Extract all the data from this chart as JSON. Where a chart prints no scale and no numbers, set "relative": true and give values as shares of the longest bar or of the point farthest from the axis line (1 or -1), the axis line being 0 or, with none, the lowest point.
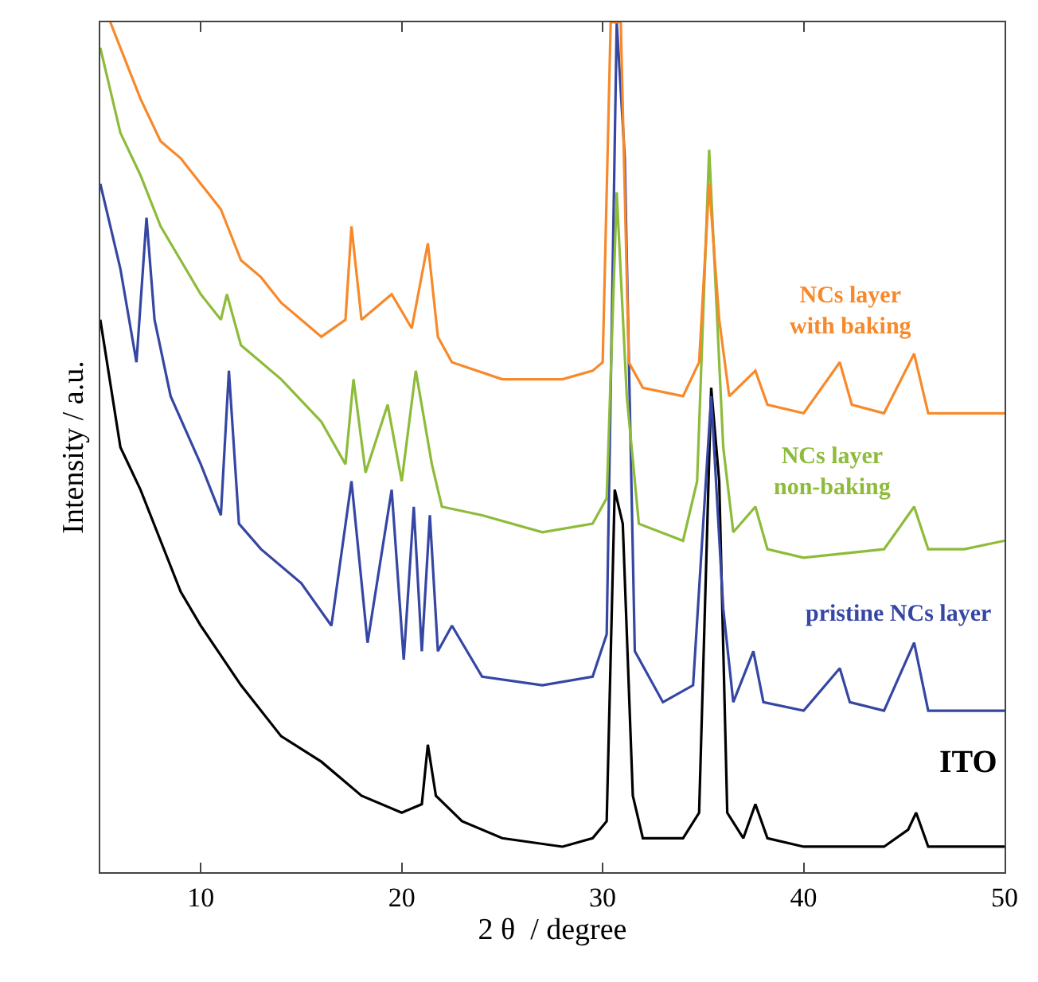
{
  "chart_data": {
    "type": "line",
    "relative": true,
    "xlabel": "2 θ  / degree",
    "ylabel": "Intensity / a.u.",
    "xlim": [
      5,
      50
    ],
    "xticks": [
      10,
      20,
      30,
      40,
      50
    ],
    "legend": false,
    "marker": "none",
    "line_style": "solid",
    "series": [
      {
        "name": "ITO",
        "color": "#000000",
        "x": [
          5,
          6,
          7,
          8,
          9,
          10,
          12,
          14,
          16,
          18,
          20,
          21,
          21.3,
          21.7,
          23,
          25,
          28,
          29.5,
          30.2,
          30.6,
          31.0,
          31.5,
          32,
          34,
          34.8,
          35.4,
          35.8,
          36.2,
          37,
          37.6,
          38.2,
          40,
          42,
          44,
          45.2,
          45.6,
          46.2,
          48,
          50
        ],
        "values": [
          0.65,
          0.5,
          0.45,
          0.39,
          0.33,
          0.29,
          0.22,
          0.16,
          0.13,
          0.09,
          0.07,
          0.08,
          0.15,
          0.09,
          0.06,
          0.04,
          0.03,
          0.04,
          0.06,
          0.45,
          0.41,
          0.09,
          0.04,
          0.04,
          0.07,
          0.57,
          0.46,
          0.07,
          0.04,
          0.08,
          0.04,
          0.03,
          0.03,
          0.03,
          0.05,
          0.07,
          0.03,
          0.03,
          0.03
        ]
      },
      {
        "name": "pristine NCs layer",
        "color": "#3546a3",
        "x": [
          5,
          6,
          6.8,
          7.3,
          7.7,
          8.5,
          10,
          11,
          11.4,
          11.9,
          13,
          15,
          16.5,
          17.5,
          18.3,
          19.5,
          20.1,
          20.6,
          21,
          21.4,
          21.8,
          22.5,
          24,
          27,
          29.5,
          30.2,
          30.7,
          31.1,
          31.6,
          33,
          34.5,
          35.4,
          36,
          36.5,
          37.5,
          38,
          40,
          41.8,
          42.3,
          44,
          45.5,
          46.2,
          48,
          50
        ],
        "values": [
          0.81,
          0.71,
          0.6,
          0.77,
          0.65,
          0.56,
          0.48,
          0.42,
          0.59,
          0.41,
          0.38,
          0.34,
          0.29,
          0.46,
          0.27,
          0.45,
          0.25,
          0.43,
          0.26,
          0.42,
          0.26,
          0.29,
          0.23,
          0.22,
          0.23,
          0.28,
          1.0,
          0.84,
          0.26,
          0.2,
          0.22,
          0.56,
          0.31,
          0.2,
          0.26,
          0.2,
          0.19,
          0.24,
          0.2,
          0.19,
          0.27,
          0.19,
          0.19,
          0.19
        ]
      },
      {
        "name": "NCs layer\nnon-baking",
        "color": "#8dbb3a",
        "x": [
          5,
          6,
          7,
          8,
          9,
          10,
          11,
          11.3,
          12,
          14,
          16,
          17.2,
          17.6,
          18.2,
          19.3,
          20,
          20.7,
          21.5,
          22,
          24,
          27,
          29.5,
          30.2,
          30.7,
          31.2,
          31.8,
          34,
          34.7,
          35.3,
          36,
          36.5,
          37.6,
          38.2,
          40,
          44,
          45.5,
          46.2,
          48,
          50
        ],
        "values": [
          0.97,
          0.87,
          0.82,
          0.76,
          0.72,
          0.68,
          0.65,
          0.68,
          0.62,
          0.58,
          0.53,
          0.48,
          0.58,
          0.47,
          0.55,
          0.46,
          0.59,
          0.48,
          0.43,
          0.42,
          0.4,
          0.41,
          0.44,
          0.8,
          0.56,
          0.41,
          0.39,
          0.46,
          0.85,
          0.5,
          0.4,
          0.43,
          0.38,
          0.37,
          0.38,
          0.43,
          0.38,
          0.38,
          0.39
        ]
      },
      {
        "name": "NCs layer\nwith baking",
        "color": "#f7892a",
        "x": [
          5.5,
          6,
          7,
          8,
          9,
          10,
          11,
          12,
          13,
          14,
          15,
          16,
          17.2,
          17.5,
          18,
          19.5,
          20.5,
          21.3,
          21.8,
          22.5,
          25,
          28,
          29.5,
          30,
          30.4,
          30.9,
          31.3,
          32,
          34,
          34.8,
          35.3,
          35.8,
          36.3,
          37.6,
          38.2,
          40,
          41.8,
          42.4,
          44,
          45.5,
          46.2,
          48,
          50
        ],
        "values": [
          1.0,
          0.97,
          0.91,
          0.86,
          0.84,
          0.81,
          0.78,
          0.72,
          0.7,
          0.67,
          0.65,
          0.63,
          0.65,
          0.76,
          0.65,
          0.68,
          0.64,
          0.74,
          0.63,
          0.6,
          0.58,
          0.58,
          0.59,
          0.6,
          1.0,
          1.0,
          0.6,
          0.57,
          0.56,
          0.6,
          0.81,
          0.65,
          0.56,
          0.59,
          0.55,
          0.54,
          0.6,
          0.55,
          0.54,
          0.61,
          0.54,
          0.54,
          0.54
        ]
      }
    ]
  }
}
